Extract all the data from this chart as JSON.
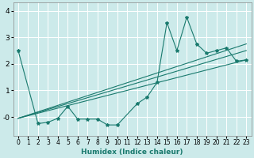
{
  "xlabel": "Humidex (Indice chaleur)",
  "xlim": [
    -0.5,
    23.5
  ],
  "ylim": [
    -0.7,
    4.3
  ],
  "yticks": [
    0,
    1,
    2,
    3,
    4
  ],
  "ytick_labels": [
    "-0",
    "1",
    "2",
    "3",
    "4"
  ],
  "xticks": [
    0,
    1,
    2,
    3,
    4,
    5,
    6,
    7,
    8,
    9,
    10,
    11,
    12,
    13,
    14,
    15,
    16,
    17,
    18,
    19,
    20,
    21,
    22,
    23
  ],
  "bg_color": "#cceaea",
  "grid_color": "#b0d8d8",
  "line_color": "#1a7a6e",
  "main_line": {
    "x": [
      0,
      2,
      3,
      4,
      5,
      6,
      7,
      8,
      9,
      10,
      12,
      13,
      14,
      15,
      16,
      17,
      18,
      19,
      20,
      21,
      22,
      23
    ],
    "y": [
      2.5,
      -0.25,
      -0.2,
      -0.05,
      0.4,
      -0.08,
      -0.08,
      -0.08,
      -0.3,
      -0.3,
      0.5,
      0.75,
      1.3,
      3.55,
      2.5,
      3.75,
      2.75,
      2.4,
      2.5,
      2.6,
      2.1,
      2.15
    ]
  },
  "trend_lines": [
    {
      "x": [
        0,
        23
      ],
      "y": [
        -0.05,
        2.15
      ]
    },
    {
      "x": [
        0,
        23
      ],
      "y": [
        -0.05,
        2.5
      ]
    },
    {
      "x": [
        0,
        23
      ],
      "y": [
        -0.05,
        2.75
      ]
    }
  ]
}
